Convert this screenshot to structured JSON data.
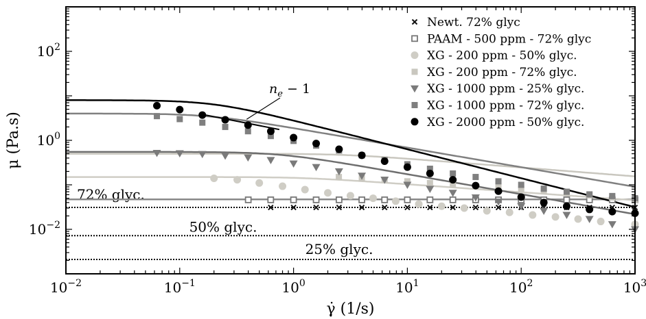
{
  "chart_data": {
    "type": "scatter",
    "xscale": "log",
    "yscale": "log",
    "xlim": [
      0.01,
      1000
    ],
    "ylim": [
      0.001,
      1000
    ],
    "xlabel": "γ̇ (1/s)",
    "ylabel": "μ (Pa.s)",
    "x_ticks": [
      {
        "value": 0.01,
        "base": "10",
        "exp": "−2"
      },
      {
        "value": 0.1,
        "base": "10",
        "exp": "−1"
      },
      {
        "value": 1,
        "base": "10",
        "exp": "0"
      },
      {
        "value": 10,
        "base": "10",
        "exp": "1"
      },
      {
        "value": 100,
        "base": "10",
        "exp": "2"
      },
      {
        "value": 1000,
        "base": "10",
        "exp": "3"
      }
    ],
    "y_ticks": [
      {
        "value": 0.01,
        "base": "10",
        "exp": "−2"
      },
      {
        "value": 1,
        "base": "10",
        "exp": "0"
      },
      {
        "value": 100,
        "base": "10",
        "exp": "2"
      }
    ],
    "grid": false,
    "legend_position": "top-right",
    "series": [
      {
        "name": "Newt. 72% glyc",
        "marker": "x",
        "color": "#111111",
        "x": [
          0.63,
          1.0,
          1.58,
          2.51,
          3.98,
          6.31,
          10,
          15.8,
          25.1,
          39.8,
          63.1,
          100,
          158,
          251,
          398,
          631,
          1000
        ],
        "y": [
          0.031,
          0.031,
          0.031,
          0.031,
          0.031,
          0.031,
          0.031,
          0.031,
          0.031,
          0.031,
          0.031,
          0.031,
          0.031,
          0.031,
          0.031,
          0.031,
          0.031
        ],
        "fit": null
      },
      {
        "name": "PAAM - 500 ppm - 72% glyc",
        "marker": "square-open",
        "color": "#777777",
        "x": [
          0.4,
          0.63,
          1.0,
          1.58,
          2.51,
          3.98,
          6.31,
          10,
          15.8,
          25.1,
          39.8,
          63.1,
          100,
          158,
          251,
          398,
          631,
          1000
        ],
        "y": [
          0.046,
          0.046,
          0.046,
          0.046,
          0.046,
          0.046,
          0.046,
          0.046,
          0.046,
          0.046,
          0.046,
          0.046,
          0.046,
          0.046,
          0.046,
          0.046,
          0.046,
          0.046
        ],
        "fit": {
          "mu0": 0.047,
          "lambda": 0.0,
          "n": 1.0,
          "color": "#888888"
        }
      },
      {
        "name": "XG - 200 ppm - 50% glyc.",
        "marker": "circle",
        "color": "#cfcdc5",
        "x": [
          0.2,
          0.32,
          0.5,
          0.8,
          1.26,
          2.0,
          3.16,
          5.0,
          7.9,
          12.6,
          20,
          31.6,
          50,
          79,
          126,
          200,
          316,
          500,
          1000
        ],
        "y": [
          0.14,
          0.13,
          0.11,
          0.093,
          0.078,
          0.066,
          0.057,
          0.05,
          0.043,
          0.037,
          0.033,
          0.03,
          0.026,
          0.024,
          0.021,
          0.019,
          0.017,
          0.015,
          0.013
        ],
        "fit": {
          "mu0": 0.15,
          "lambda": 0.8,
          "n": 0.82,
          "color": "#cfcdc5"
        }
      },
      {
        "name": "XG - 200 ppm - 72% glyc.",
        "marker": "square",
        "color": "#c9c7bf",
        "x": [
          2.5,
          3.98,
          6.31,
          10,
          15.8,
          25.1,
          39.8,
          63.1,
          100,
          158,
          251,
          398,
          631,
          1000
        ],
        "y": [
          0.15,
          0.14,
          0.13,
          0.12,
          0.11,
          0.1,
          0.095,
          0.088,
          0.08,
          0.073,
          0.065,
          0.058,
          0.052,
          0.046
        ],
        "fit": {
          "mu0": 0.5,
          "lambda": 0.35,
          "n": 0.8,
          "color": "#c9c7bf"
        }
      },
      {
        "name": "XG - 1000 ppm - 25% glyc.",
        "marker": "triangle-down",
        "color": "#7a7a7a",
        "x": [
          0.063,
          0.1,
          0.158,
          0.251,
          0.398,
          0.631,
          1.0,
          1.58,
          2.51,
          3.98,
          6.31,
          10,
          15.8,
          25.1,
          39.8,
          63.1,
          100,
          158,
          251,
          398,
          631,
          1000
        ],
        "y": [
          0.52,
          0.51,
          0.49,
          0.45,
          0.41,
          0.36,
          0.3,
          0.25,
          0.2,
          0.16,
          0.13,
          0.1,
          0.081,
          0.066,
          0.052,
          0.042,
          0.033,
          0.026,
          0.021,
          0.017,
          0.013,
          0.01
        ],
        "fit": {
          "mu0": 0.55,
          "lambda": 1.3,
          "n": 0.55,
          "color": "#6e6e6e"
        }
      },
      {
        "name": "XG - 1000 ppm - 72% glyc.",
        "marker": "square",
        "color": "#7f7f7f",
        "x": [
          0.063,
          0.1,
          0.158,
          0.251,
          0.398,
          0.631,
          1.0,
          1.58,
          2.51,
          3.98,
          6.31,
          10,
          15.8,
          25.1,
          39.8,
          63.1,
          100,
          158,
          251,
          398,
          631,
          1000
        ],
        "y": [
          3.5,
          3.0,
          2.5,
          2.0,
          1.6,
          1.25,
          0.97,
          0.76,
          0.59,
          0.46,
          0.36,
          0.29,
          0.23,
          0.18,
          0.15,
          0.12,
          0.1,
          0.082,
          0.07,
          0.061,
          0.056,
          0.05
        ],
        "fit": {
          "mu0": 4.0,
          "lambda": 5.5,
          "n": 0.56,
          "color": "#808080"
        }
      },
      {
        "name": "XG - 2000 ppm - 50% glyc.",
        "marker": "circle",
        "color": "#000000",
        "x": [
          0.063,
          0.1,
          0.158,
          0.251,
          0.398,
          0.631,
          1.0,
          1.58,
          2.51,
          3.98,
          6.31,
          10,
          15.8,
          25.1,
          39.8,
          63.1,
          100,
          158,
          251,
          398,
          631,
          1000
        ],
        "y": [
          6.0,
          4.9,
          3.7,
          2.9,
          2.2,
          1.6,
          1.15,
          0.85,
          0.63,
          0.46,
          0.34,
          0.25,
          0.18,
          0.13,
          0.096,
          0.072,
          0.053,
          0.04,
          0.033,
          0.028,
          0.025,
          0.023
        ],
        "fit": {
          "mu0": 8.0,
          "lambda": 5.0,
          "n": 0.35,
          "color": "#000000"
        }
      }
    ],
    "reference_lines": [
      {
        "label": "72% glyc.",
        "y": 0.031
      },
      {
        "label": "50% glyc.",
        "y": 0.0072
      },
      {
        "label": "25% glyc.",
        "y": 0.0021
      }
    ],
    "annotation": {
      "label": "n_e − 1",
      "x1": 0.16,
      "y1": 3.8,
      "x2": 0.75,
      "y2": 1.75
    }
  }
}
